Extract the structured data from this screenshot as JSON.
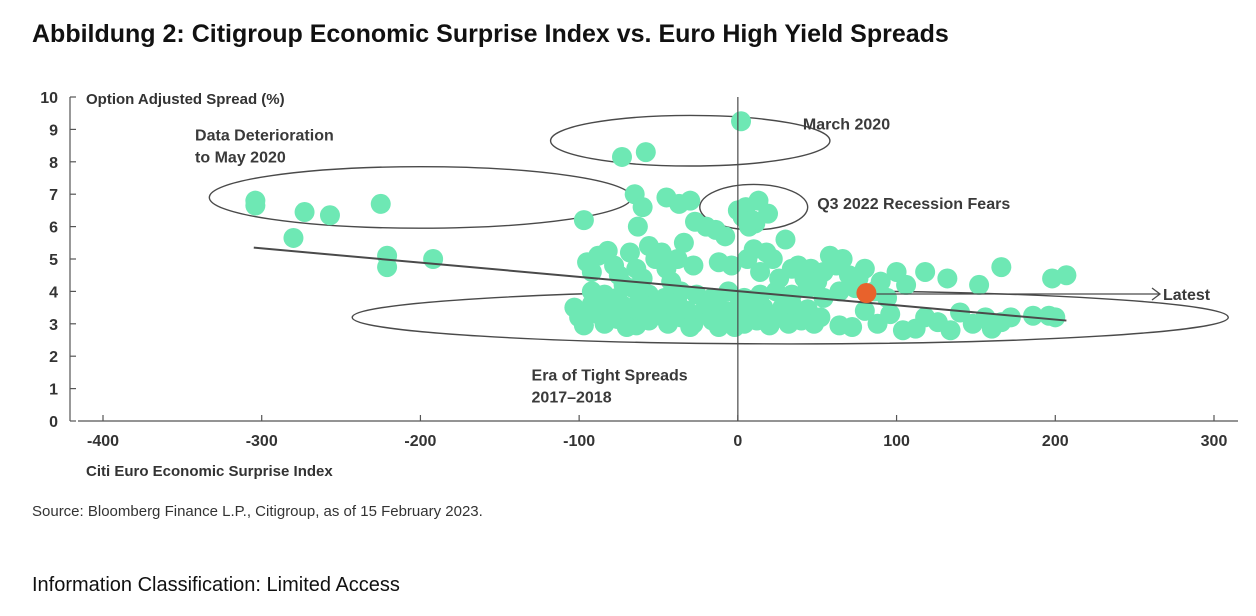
{
  "title": "Abbildung 2: Citigroup Economic Surprise Index vs. Euro High Yield Spreads",
  "source": "Source: Bloomberg Finance L.P., Citigroup, as of 15 February 2023.",
  "classification": "Information Classification: Limited Access",
  "chart_data": {
    "type": "scatter",
    "xlabel": "Citi Euro Economic Surprise Index",
    "ylabel": "Option Adjusted Spread (%)",
    "xlim": [
      -400,
      300
    ],
    "ylim": [
      0,
      10
    ],
    "x_ticks": [
      "-400",
      "-300",
      "-200",
      "-100",
      "0",
      "100",
      "200",
      "300"
    ],
    "y_ticks": [
      "0",
      "1",
      "2",
      "3",
      "4",
      "5",
      "6",
      "7",
      "8",
      "9",
      "10"
    ],
    "grid": false,
    "colors": {
      "points": "#6ee8b4",
      "latest": "#e8622c",
      "lines": "#4a4a4a",
      "axis": "#555555"
    },
    "trendline": {
      "from": [
        -305,
        5.35
      ],
      "to": [
        207,
        3.1
      ]
    },
    "latest_point": {
      "x": 81,
      "y": 3.95
    },
    "latest_label": "Latest",
    "annotations": [
      {
        "id": "march-2020",
        "lines": [
          "March 2020"
        ],
        "ellipse": {
          "cx": -30,
          "cy": 8.65,
          "rx": 88,
          "ry": 0.78
        },
        "text_at": [
          41,
          9.0
        ]
      },
      {
        "id": "data-deterioration",
        "lines": [
          "Data Deterioration",
          "to May 2020"
        ],
        "ellipse": {
          "cx": -200,
          "cy": 6.9,
          "rx": 133,
          "ry": 0.95
        },
        "text_at": [
          -342,
          8.65
        ]
      },
      {
        "id": "q3-2022",
        "lines": [
          "Q3 2022 Recession Fears"
        ],
        "ellipse": {
          "cx": 10,
          "cy": 6.6,
          "rx": 34,
          "ry": 0.7
        },
        "text_at": [
          50,
          6.55
        ]
      },
      {
        "id": "tight-spreads",
        "lines": [
          "Era of Tight Spreads",
          "2017–2018"
        ],
        "ellipse": {
          "cx": 33,
          "cy": 3.2,
          "rx": 276,
          "ry": 0.82
        },
        "text_at": [
          -130,
          1.25
        ]
      }
    ],
    "points": [
      [
        -304,
        6.8
      ],
      [
        -304,
        6.65
      ],
      [
        -280,
        5.65
      ],
      [
        -273,
        6.45
      ],
      [
        -257,
        6.35
      ],
      [
        -225,
        6.7
      ],
      [
        -221,
        5.1
      ],
      [
        -221,
        4.75
      ],
      [
        -192,
        5.0
      ],
      [
        -97,
        6.2
      ],
      [
        -73,
        8.15
      ],
      [
        -58,
        8.3
      ],
      [
        2,
        9.25
      ],
      [
        -65,
        7.0
      ],
      [
        -60,
        6.6
      ],
      [
        -63,
        6.0
      ],
      [
        -45,
        6.9
      ],
      [
        -37,
        6.7
      ],
      [
        -30,
        6.8
      ],
      [
        -27,
        6.15
      ],
      [
        -20,
        6.0
      ],
      [
        -14,
        5.9
      ],
      [
        -8,
        5.7
      ],
      [
        0,
        6.5
      ],
      [
        3,
        6.3
      ],
      [
        7,
        6.0
      ],
      [
        11,
        6.1
      ],
      [
        13,
        6.8
      ],
      [
        19,
        6.4
      ],
      [
        5,
        6.6
      ],
      [
        9,
        6.2
      ],
      [
        -95,
        4.9
      ],
      [
        -92,
        4.6
      ],
      [
        -88,
        5.1
      ],
      [
        -82,
        5.25
      ],
      [
        -78,
        4.8
      ],
      [
        -75,
        4.5
      ],
      [
        -72,
        4.2
      ],
      [
        -68,
        5.2
      ],
      [
        -64,
        4.7
      ],
      [
        -60,
        4.4
      ],
      [
        -56,
        5.4
      ],
      [
        -52,
        5.0
      ],
      [
        -48,
        5.2
      ],
      [
        -45,
        4.7
      ],
      [
        -42,
        4.3
      ],
      [
        -38,
        5.0
      ],
      [
        -34,
        5.5
      ],
      [
        -28,
        4.8
      ],
      [
        -12,
        4.9
      ],
      [
        -4,
        4.8
      ],
      [
        6,
        5.0
      ],
      [
        10,
        5.3
      ],
      [
        14,
        4.6
      ],
      [
        18,
        5.2
      ],
      [
        22,
        5.0
      ],
      [
        26,
        4.4
      ],
      [
        30,
        5.6
      ],
      [
        34,
        4.7
      ],
      [
        38,
        4.8
      ],
      [
        42,
        4.4
      ],
      [
        46,
        4.7
      ],
      [
        50,
        4.3
      ],
      [
        54,
        4.6
      ],
      [
        58,
        5.1
      ],
      [
        62,
        4.8
      ],
      [
        66,
        5.0
      ],
      [
        70,
        4.5
      ],
      [
        76,
        4.4
      ],
      [
        80,
        4.7
      ],
      [
        86,
        4.0
      ],
      [
        90,
        4.3
      ],
      [
        100,
        4.6
      ],
      [
        106,
        4.2
      ],
      [
        118,
        4.6
      ],
      [
        132,
        4.4
      ],
      [
        152,
        4.2
      ],
      [
        166,
        4.75
      ],
      [
        198,
        4.4
      ],
      [
        207,
        4.5
      ],
      [
        -92,
        4.0
      ],
      [
        -84,
        3.9
      ],
      [
        -76,
        3.8
      ],
      [
        -66,
        4.1
      ],
      [
        -56,
        3.9
      ],
      [
        -46,
        3.8
      ],
      [
        -36,
        4.0
      ],
      [
        -26,
        3.9
      ],
      [
        -16,
        3.8
      ],
      [
        -6,
        4.0
      ],
      [
        4,
        3.8
      ],
      [
        14,
        3.9
      ],
      [
        24,
        4.0
      ],
      [
        34,
        3.9
      ],
      [
        44,
        4.1
      ],
      [
        54,
        3.8
      ],
      [
        64,
        4.0
      ],
      [
        74,
        4.1
      ],
      [
        94,
        3.8
      ],
      [
        -103,
        3.5
      ],
      [
        -100,
        3.2
      ],
      [
        -97,
        2.95
      ],
      [
        -92,
        3.6
      ],
      [
        -88,
        3.3
      ],
      [
        -84,
        3.0
      ],
      [
        -80,
        3.45
      ],
      [
        -76,
        3.15
      ],
      [
        -72,
        3.55
      ],
      [
        -68,
        3.2
      ],
      [
        -64,
        2.95
      ],
      [
        -60,
        3.4
      ],
      [
        -56,
        3.1
      ],
      [
        -52,
        3.6
      ],
      [
        -48,
        3.25
      ],
      [
        -44,
        3.0
      ],
      [
        -40,
        3.5
      ],
      [
        -36,
        3.2
      ],
      [
        -32,
        3.4
      ],
      [
        -28,
        3.0
      ],
      [
        -24,
        3.3
      ],
      [
        -20,
        3.6
      ],
      [
        -16,
        3.1
      ],
      [
        -12,
        2.9
      ],
      [
        -8,
        3.4
      ],
      [
        -4,
        3.2
      ],
      [
        0,
        3.5
      ],
      [
        4,
        3.0
      ],
      [
        8,
        3.3
      ],
      [
        12,
        3.1
      ],
      [
        16,
        3.5
      ],
      [
        20,
        2.95
      ],
      [
        24,
        3.25
      ],
      [
        28,
        3.5
      ],
      [
        32,
        3.0
      ],
      [
        36,
        3.3
      ],
      [
        40,
        3.1
      ],
      [
        44,
        3.45
      ],
      [
        48,
        3.0
      ],
      [
        52,
        3.2
      ],
      [
        -86,
        3.75
      ],
      [
        -62,
        3.7
      ],
      [
        -38,
        3.65
      ],
      [
        -14,
        3.7
      ],
      [
        10,
        3.65
      ],
      [
        34,
        3.6
      ],
      [
        -30,
        2.9
      ],
      [
        -2,
        2.9
      ],
      [
        -70,
        2.9
      ],
      [
        64,
        2.95
      ],
      [
        72,
        2.9
      ],
      [
        80,
        3.4
      ],
      [
        88,
        3.0
      ],
      [
        96,
        3.3
      ],
      [
        104,
        2.8
      ],
      [
        112,
        2.85
      ],
      [
        118,
        3.2
      ],
      [
        126,
        3.05
      ],
      [
        134,
        2.8
      ],
      [
        140,
        3.35
      ],
      [
        148,
        3.0
      ],
      [
        156,
        3.2
      ],
      [
        160,
        2.85
      ],
      [
        166,
        3.05
      ],
      [
        172,
        3.2
      ],
      [
        186,
        3.25
      ],
      [
        196,
        3.25
      ],
      [
        200,
        3.2
      ]
    ]
  }
}
